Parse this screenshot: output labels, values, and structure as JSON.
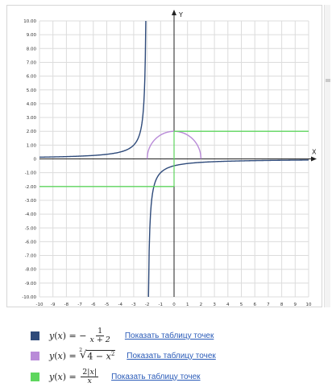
{
  "chart_data": {
    "type": "line",
    "xlim": [
      -10,
      10
    ],
    "ylim": [
      -10,
      10
    ],
    "x_ticks": [
      -10,
      -9,
      -8,
      -7,
      -6,
      -5,
      -4,
      -3,
      -2,
      -1,
      0,
      1,
      2,
      3,
      4,
      5,
      6,
      7,
      8,
      9,
      10
    ],
    "y_ticks": [
      -10,
      -9,
      -8,
      -7,
      -6,
      -5,
      -4,
      -3,
      -2,
      -1,
      0,
      1,
      2,
      3,
      4,
      5,
      6,
      7,
      8,
      9,
      10
    ],
    "x_tick_labels": [
      "-10",
      "-9",
      "-8",
      "-7",
      "-6",
      "-5",
      "-4",
      "-3",
      "-2",
      "-1",
      "0",
      "1",
      "2",
      "3",
      "4",
      "5",
      "6",
      "7",
      "8",
      "9",
      "10"
    ],
    "y_tick_labels": [
      "-10.00",
      "-9.00",
      "-8.00",
      "-7.00",
      "-6.00",
      "-5.00",
      "-4.00",
      "-3.00",
      "-2.00",
      "-1.00",
      "0",
      "1.00",
      "2.00",
      "3.00",
      "4.00",
      "5.00",
      "6.00",
      "7.00",
      "8.00",
      "9.00",
      "10.00"
    ],
    "xlabel": "X",
    "ylabel": "Y",
    "grid": true,
    "series": [
      {
        "formula": "y = -1/(x+2)",
        "color": "#2e4a7a",
        "x": [
          -10,
          -8,
          -6,
          -5,
          -4,
          -3,
          -2.6,
          -2.3,
          -2.2,
          -2.1,
          -1.9,
          -1.8,
          -1.7,
          -1.6,
          -1.4,
          -1,
          0,
          1,
          2,
          4,
          6,
          8,
          10
        ],
        "y": [
          0.125,
          0.167,
          0.25,
          0.333,
          0.5,
          1,
          1.667,
          3.333,
          5,
          10,
          -10,
          -5,
          -3.333,
          -2.5,
          -1.667,
          -1,
          -0.5,
          -0.333,
          -0.25,
          -0.167,
          -0.125,
          -0.1,
          -0.083
        ]
      },
      {
        "formula": "y = sqrt(4 - x^2)",
        "color": "#b98bd8",
        "x": [
          -2,
          -1.9,
          -1.5,
          -1,
          -0.5,
          0,
          0.5,
          1,
          1.5,
          1.9,
          2
        ],
        "y": [
          0,
          0.624,
          1.323,
          1.732,
          1.936,
          2,
          1.936,
          1.732,
          1.323,
          0.624,
          0
        ]
      },
      {
        "formula": "y = 2|x|/x",
        "color": "#5ed65e",
        "x": [
          -10,
          0,
          0,
          10
        ],
        "y": [
          -2,
          -2,
          2,
          2
        ]
      }
    ]
  },
  "legend": [
    {
      "color": "#2e4a7a",
      "link": "Показать таблицу точек"
    },
    {
      "color": "#b98bd8",
      "link": "Показать таблицу точек"
    },
    {
      "color": "#5ed65e",
      "link": "Показать таблицу точек"
    }
  ]
}
